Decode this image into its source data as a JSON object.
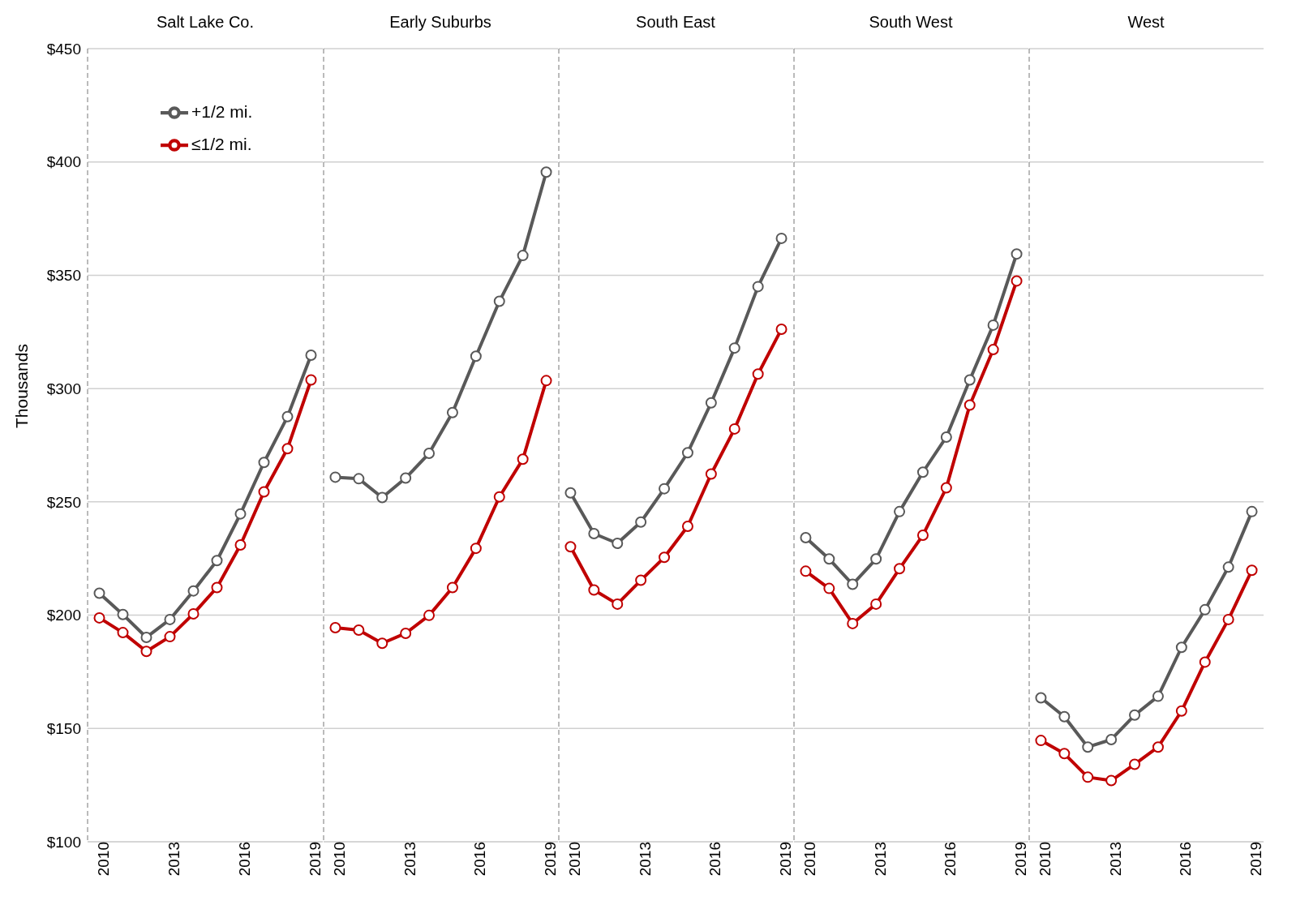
{
  "chart_data": [
    {
      "type": "line",
      "title": "Salt Lake Co.",
      "ylabel": "Thousands",
      "x": [
        2010,
        2011,
        2012,
        2013,
        2014,
        2015,
        2016,
        2017,
        2018,
        2019
      ],
      "xlim": [
        2009.5,
        2019.5
      ],
      "xticks": [
        2010,
        2013,
        2016,
        2019
      ],
      "ylim": [
        100,
        450
      ],
      "yticks": [
        {
          "value": 100,
          "label": "$100"
        },
        {
          "value": 150,
          "label": "$150"
        },
        {
          "value": 200,
          "label": "$200"
        },
        {
          "value": 250,
          "label": "$250"
        },
        {
          "value": 300,
          "label": "$300"
        },
        {
          "value": 350,
          "label": "$350"
        },
        {
          "value": 400,
          "label": "$400"
        },
        {
          "value": 450,
          "label": "$450"
        }
      ],
      "grid": "y",
      "legend": "top left",
      "marker": "circle",
      "line_style": "solid",
      "series": [
        {
          "name": "+1/2 mi.",
          "color": "#595959",
          "values": [
            209.7,
            200.3,
            190.2,
            198.1,
            210.7,
            224.1,
            244.7,
            267.4,
            287.6,
            314.7
          ]
        },
        {
          "name": "≤1/2 mi.",
          "color": "#c00000",
          "values": [
            198.8,
            192.3,
            184.0,
            190.5,
            200.6,
            212.2,
            231.0,
            254.4,
            273.5,
            303.8
          ]
        }
      ]
    },
    {
      "type": "line",
      "title": "Early Suburbs",
      "x": [
        2010,
        2011,
        2012,
        2013,
        2014,
        2015,
        2016,
        2017,
        2018,
        2019
      ],
      "xlim": [
        2009.5,
        2019.5
      ],
      "xticks": [
        2010,
        2013,
        2016,
        2019
      ],
      "ylim": [
        100,
        450
      ],
      "yticks": [
        100,
        150,
        200,
        250,
        300,
        350,
        400,
        450
      ],
      "grid": "y",
      "tick_labels": "x",
      "marker": "circle",
      "line_style": "solid",
      "series": [
        {
          "color": "#595959",
          "values": [
            260.9,
            260.2,
            251.9,
            260.5,
            271.4,
            289.4,
            314.3,
            338.5,
            358.7,
            395.5
          ]
        },
        {
          "color": "#c00000",
          "values": [
            194.5,
            193.4,
            187.6,
            192.0,
            199.9,
            212.2,
            229.5,
            252.2,
            268.8,
            303.5
          ]
        }
      ]
    },
    {
      "type": "line",
      "title": "South East",
      "x": [
        2010,
        2011,
        2012,
        2013,
        2014,
        2015,
        2016,
        2017,
        2018,
        2019
      ],
      "xlim": [
        2009.5,
        2019.5
      ],
      "xticks": [
        2010,
        2013,
        2016,
        2019
      ],
      "ylim": [
        100,
        450
      ],
      "yticks": [
        100,
        150,
        200,
        250,
        300,
        350,
        400,
        450
      ],
      "grid": "y",
      "tick_labels": "x",
      "marker": "circle",
      "line_style": "solid",
      "series": [
        {
          "color": "#595959",
          "values": [
            254.0,
            236.0,
            231.7,
            241.1,
            255.8,
            271.7,
            293.7,
            317.9,
            345.0,
            366.3
          ]
        },
        {
          "color": "#c00000",
          "values": [
            230.2,
            211.1,
            204.9,
            215.4,
            225.5,
            239.2,
            262.3,
            282.2,
            306.4,
            326.2
          ]
        }
      ]
    },
    {
      "type": "line",
      "title": "South West",
      "x": [
        2010,
        2011,
        2012,
        2013,
        2014,
        2015,
        2016,
        2017,
        2018,
        2019
      ],
      "xlim": [
        2009.5,
        2019.5
      ],
      "xticks": [
        2010,
        2013,
        2016,
        2019
      ],
      "ylim": [
        100,
        450
      ],
      "yticks": [
        100,
        150,
        200,
        250,
        300,
        350,
        400,
        450
      ],
      "grid": "y",
      "tick_labels": "x",
      "marker": "circle",
      "line_style": "solid",
      "series": [
        {
          "color": "#595959",
          "values": [
            234.2,
            224.8,
            213.6,
            224.8,
            245.7,
            263.1,
            278.6,
            303.8,
            328.0,
            359.4
          ]
        },
        {
          "color": "#c00000",
          "values": [
            219.4,
            211.8,
            196.3,
            204.9,
            220.5,
            235.3,
            256.2,
            292.7,
            317.2,
            347.5
          ]
        }
      ]
    },
    {
      "type": "line",
      "title": "West",
      "x": [
        2010,
        2011,
        2012,
        2013,
        2014,
        2015,
        2016,
        2017,
        2018,
        2019
      ],
      "xlim": [
        2009.5,
        2019.5
      ],
      "xticks": [
        2010,
        2013,
        2016,
        2019
      ],
      "ylim": [
        100,
        450
      ],
      "yticks": [
        100,
        150,
        200,
        250,
        300,
        350,
        400,
        450
      ],
      "grid": "y",
      "tick_labels": "x",
      "marker": "circle",
      "line_style": "solid",
      "series": [
        {
          "color": "#595959",
          "values": [
            163.5,
            155.2,
            141.8,
            145.1,
            155.9,
            164.2,
            185.8,
            202.4,
            221.2,
            245.7
          ]
        },
        {
          "color": "#c00000",
          "values": [
            144.7,
            138.9,
            128.5,
            127.0,
            134.2,
            141.8,
            157.7,
            179.3,
            198.1,
            219.8
          ]
        }
      ]
    }
  ]
}
